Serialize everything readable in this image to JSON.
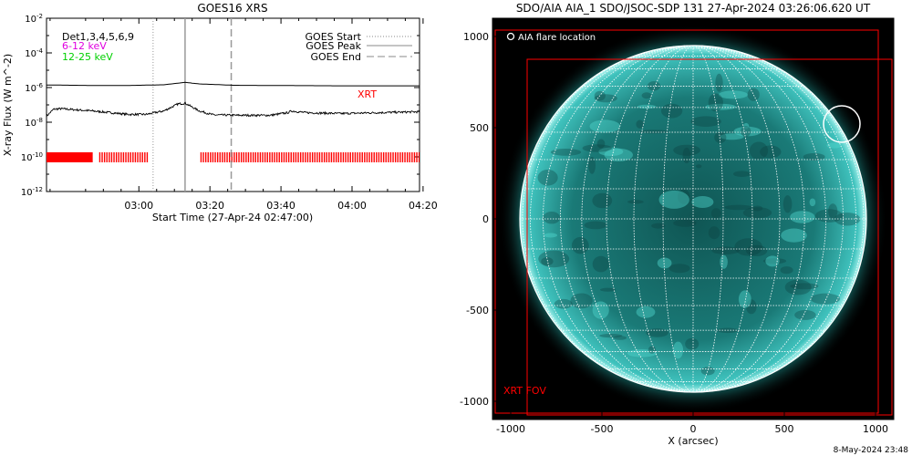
{
  "goes_panel": {
    "title": "GOES16 XRS",
    "legend_det": "Det1,3,4,5,6,9",
    "legend_band_1": "6-12 keV",
    "legend_band_2": "12-25 keV",
    "legend_start": "GOES Start",
    "legend_peak": "GOES Peak",
    "legend_end": "GOES End",
    "xrt_label": "XRT",
    "colors": {
      "band_1": "#e000e0",
      "band_2": "#00d000",
      "xrt": "#ff0000"
    }
  },
  "aia_panel": {
    "title": "SDO/AIA AIA_1 SDO/JSOC-SDP 131 27-Apr-2024 03:26:06.620 UT",
    "flare_location_label": "AIA flare location",
    "xrt_fov_label": "XRT FOV",
    "xlabel": "X (arcsec)",
    "x_ticks": [
      "-1000",
      "-500",
      "0",
      "500",
      "1000"
    ],
    "y_ticks": [
      "1000",
      "500",
      "0",
      "-500",
      "-1000"
    ],
    "colors": {
      "disk": "#1e8f8c",
      "fov": "#ff0000"
    }
  },
  "timestamp": "8-May-2024 23:48",
  "chart_data": [
    {
      "type": "line",
      "title": "GOES16 XRS",
      "xlabel": "Start Time (27-Apr-24 02:47:00)",
      "ylabel": "X-ray Flux (W m^-2)",
      "x_ticks": [
        "03:00",
        "03:20",
        "03:40",
        "04:00",
        "04:20"
      ],
      "y_ticks": [
        "10^-2",
        "10^-4",
        "10^-6",
        "10^-8",
        "10^-10",
        "10^-12"
      ],
      "x_range_minutes": [
        -13,
        92
      ],
      "ylim_log10": [
        -12,
        -2
      ],
      "y_scale": "log",
      "vertical_markers": {
        "goes_start": 17,
        "goes_peak": 26,
        "goes_end": 39
      },
      "series": [
        {
          "name": "Long channel",
          "x_minutes": [
            -13,
            -5,
            0,
            10,
            15,
            20,
            26,
            30,
            40,
            50,
            60,
            70,
            80,
            92
          ],
          "log10_flux": [
            -5.85,
            -5.87,
            -5.88,
            -5.88,
            -5.86,
            -5.84,
            -5.7,
            -5.79,
            -5.87,
            -5.88,
            -5.89,
            -5.9,
            -5.9,
            -5.9
          ]
        },
        {
          "name": "Short channel",
          "x_minutes": [
            -13,
            -11,
            -9,
            -5,
            0,
            5,
            10,
            15,
            20,
            24,
            26,
            30,
            34,
            40,
            50,
            55,
            56,
            60,
            70,
            80,
            92
          ],
          "log10_flux": [
            -7.65,
            -7.25,
            -7.22,
            -7.28,
            -7.35,
            -7.45,
            -7.55,
            -7.55,
            -7.35,
            -6.95,
            -6.9,
            -7.35,
            -7.58,
            -7.6,
            -7.6,
            -7.45,
            -7.35,
            -7.45,
            -7.5,
            -7.45,
            -7.4
          ]
        }
      ],
      "xrt_coverage_minutes": [
        [
          -13,
          0
        ],
        [
          2,
          15.5
        ],
        [
          30.5,
          92
        ]
      ]
    },
    {
      "type": "image",
      "title": "SDO/AIA AIA_1 SDO/JSOC-SDP 131 27-Apr-2024 03:26:06.620 UT",
      "xlabel": "X (arcsec)",
      "ylabel": "",
      "xlim": [
        -1100,
        1100
      ],
      "ylim": [
        -1100,
        1100
      ],
      "solar_radius_arcsec": 950,
      "flare_location_arcsec": [
        815,
        520
      ],
      "xrt_fov_arcsec": {
        "x": [
          -1000,
          1000
        ],
        "y": [
          -1000,
          950
        ]
      }
    }
  ]
}
